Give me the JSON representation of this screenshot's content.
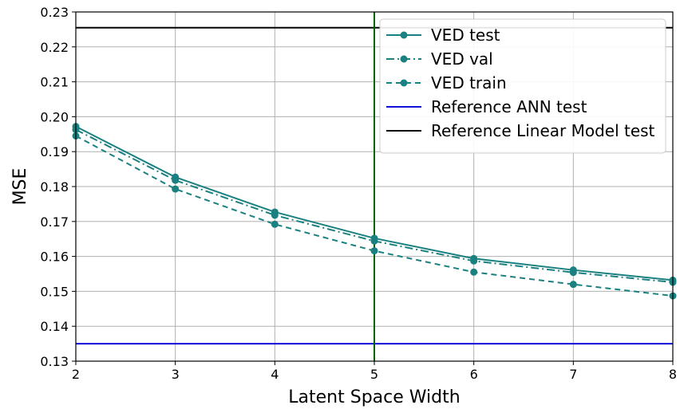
{
  "chart_data": {
    "type": "line",
    "xlabel": "Latent Space Width",
    "ylabel": "MSE",
    "xlim": [
      2,
      8
    ],
    "ylim": [
      0.13,
      0.23
    ],
    "x_ticks": [
      "2",
      "3",
      "4",
      "5",
      "6",
      "7",
      "8"
    ],
    "y_ticks": [
      "0.13",
      "0.14",
      "0.15",
      "0.16",
      "0.17",
      "0.18",
      "0.19",
      "0.20",
      "0.21",
      "0.22",
      "0.23"
    ],
    "grid": true,
    "legend_position": "top-right",
    "x": [
      2,
      3,
      4,
      5,
      6,
      7,
      8
    ],
    "series": [
      {
        "name": "VED test",
        "values": [
          0.1972,
          0.1827,
          0.1727,
          0.1652,
          0.1594,
          0.1561,
          0.1532
        ],
        "color": "#1a8080",
        "style": "solid",
        "marker": "circle"
      },
      {
        "name": "VED val",
        "values": [
          0.1963,
          0.1818,
          0.1718,
          0.1644,
          0.1587,
          0.1554,
          0.1526
        ],
        "color": "#1a8080",
        "style": "dashdot",
        "marker": "circle"
      },
      {
        "name": "VED train",
        "values": [
          0.1945,
          0.1793,
          0.1692,
          0.1616,
          0.1555,
          0.152,
          0.1487
        ],
        "color": "#1a8080",
        "style": "dashed",
        "marker": "circle"
      }
    ],
    "reference_lines": [
      {
        "name": "Reference ANN test",
        "y": 0.135,
        "color": "#1010d8"
      },
      {
        "name": "Reference Linear Model test",
        "y": 0.2255,
        "color": "#000000"
      }
    ],
    "vertical_lines": [
      {
        "x": 5,
        "color": "#006400"
      }
    ]
  }
}
